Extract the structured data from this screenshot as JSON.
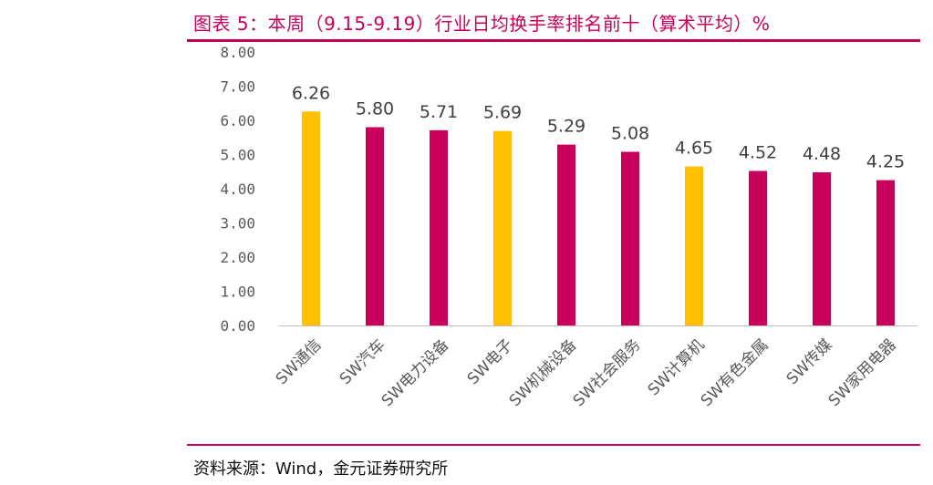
{
  "header": {
    "title": "图表 5：本周（9.15-9.19）行业日均换手率排名前十（算术平均）%"
  },
  "footer": {
    "source": "资料来源：Wind，金元证券研究所"
  },
  "colors": {
    "accent": "#c8005a",
    "highlight": "#ffc000",
    "axis": "#bfbfbf",
    "text": "#595959"
  },
  "chart_data": {
    "type": "bar",
    "categories": [
      "SW通信",
      "SW汽车",
      "SW电力设备",
      "SW电子",
      "SW机械设备",
      "SW社会服务",
      "SW计算机",
      "SW有色金属",
      "SW传媒",
      "SW家用电器"
    ],
    "values": [
      6.26,
      5.8,
      5.71,
      5.69,
      5.29,
      5.08,
      4.65,
      4.52,
      4.48,
      4.25
    ],
    "value_labels": [
      "6.26",
      "5.80",
      "5.71",
      "5.69",
      "5.29",
      "5.08",
      "4.65",
      "4.52",
      "4.48",
      "4.25"
    ],
    "bar_colors": [
      "#ffc000",
      "#c8005a",
      "#c8005a",
      "#ffc000",
      "#c8005a",
      "#c8005a",
      "#ffc000",
      "#c8005a",
      "#c8005a",
      "#c8005a"
    ],
    "ylim": [
      0,
      8
    ],
    "yticks": [
      "0.00",
      "1.00",
      "2.00",
      "3.00",
      "4.00",
      "5.00",
      "6.00",
      "7.00",
      "8.00"
    ],
    "ytick_values": [
      0,
      1,
      2,
      3,
      4,
      5,
      6,
      7,
      8
    ],
    "grid": false,
    "legend": "none"
  }
}
